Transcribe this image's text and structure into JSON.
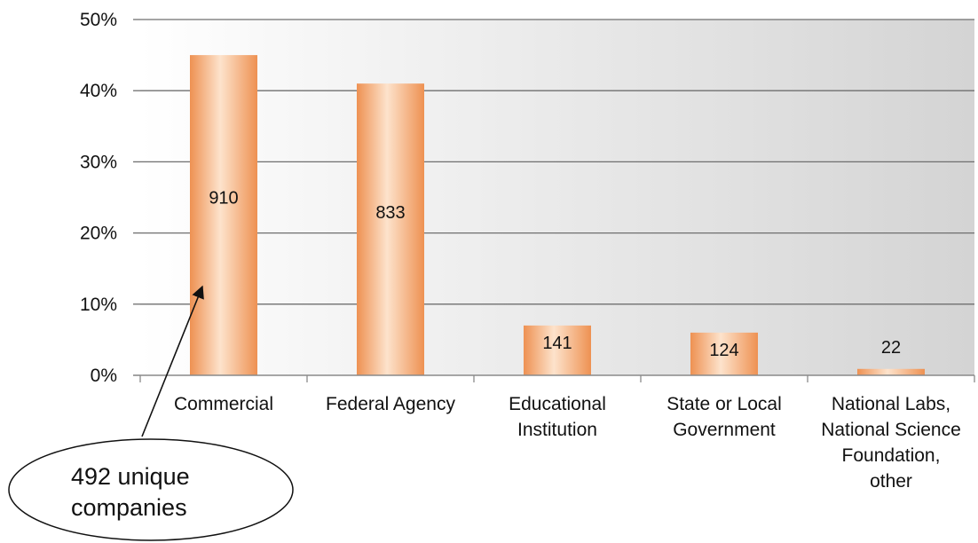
{
  "chart_data": {
    "type": "bar",
    "categories": [
      [
        "Commercial"
      ],
      [
        "Federal Agency"
      ],
      [
        "Educational",
        "Institution"
      ],
      [
        "State or Local",
        "Government"
      ],
      [
        "National Labs,",
        "National Science",
        "Foundation,",
        "other"
      ]
    ],
    "values": [
      45,
      41,
      7,
      6,
      0.9
    ],
    "data_labels": [
      "910",
      "833",
      "141",
      "124",
      "22"
    ],
    "ylim": [
      0,
      50
    ],
    "yticks": [
      0,
      10,
      20,
      30,
      40,
      50
    ],
    "ytick_labels": [
      "0%",
      "10%",
      "20%",
      "30%",
      "40%",
      "50%"
    ],
    "grid": true,
    "bar_color": "#f2a66e",
    "title": "",
    "xlabel": "",
    "ylabel": "",
    "annotation": {
      "lines": [
        "492 unique",
        "companies"
      ],
      "points_to_category": "Commercial"
    }
  }
}
